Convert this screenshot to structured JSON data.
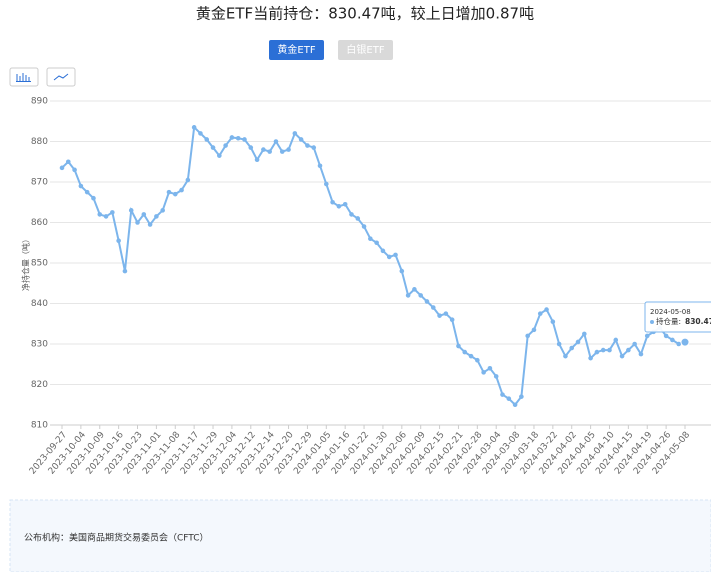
{
  "chart_data": {
    "type": "line",
    "title": "黄金ETF当前持仓：830.47吨，较上日增加0.87吨",
    "y_label": "净持仓量（吨）",
    "x": [
      "2023-09-27",
      null,
      null,
      "2023-10-04",
      null,
      null,
      "2023-10-09",
      null,
      null,
      "2023-10-16",
      null,
      null,
      "2023-10-23",
      null,
      null,
      "2023-11-01",
      null,
      null,
      "2023-11-08",
      null,
      null,
      "2023-11-17",
      null,
      null,
      "2023-11-29",
      null,
      null,
      "2023-12-04",
      null,
      null,
      "2023-12-12",
      null,
      null,
      "2023-12-14",
      null,
      null,
      "2023-12-20",
      null,
      null,
      "2023-12-29",
      null,
      null,
      "2024-01-05",
      null,
      null,
      "2024-01-16",
      null,
      null,
      "2024-01-22",
      null,
      null,
      "2024-01-30",
      null,
      null,
      "2024-02-06",
      null,
      null,
      "2024-02-09",
      null,
      null,
      "2024-02-15",
      null,
      null,
      "2024-02-21",
      null,
      null,
      "2024-02-28",
      null,
      null,
      "2024-03-04",
      null,
      null,
      "2024-03-08",
      null,
      null,
      "2024-03-18",
      null,
      null,
      "2024-03-22",
      null,
      null,
      "2024-04-02",
      null,
      null,
      "2024-04-05",
      null,
      null,
      "2024-04-10",
      null,
      null,
      "2024-04-15",
      null,
      null,
      "2024-04-19",
      null,
      null,
      "2024-04-26",
      null,
      null,
      "2024-05-08"
    ],
    "series": [
      {
        "name": "持仓量",
        "color": "#7cb5ec",
        "values": [
          873.5,
          875,
          873,
          869,
          867.5,
          866,
          862,
          861.5,
          862.5,
          855.5,
          848,
          863,
          860,
          862,
          859.5,
          861.5,
          863,
          867.5,
          867,
          868,
          870.5,
          883.5,
          882,
          880.5,
          878.5,
          876.5,
          879,
          881,
          880.8,
          880.5,
          878.5,
          875.5,
          878,
          877.5,
          880,
          877.5,
          878,
          882,
          880.5,
          879,
          878.5,
          874,
          869.5,
          865,
          864,
          864.5,
          862,
          861,
          859,
          856,
          855,
          853,
          851.5,
          852,
          848,
          842,
          843.5,
          842,
          840.5,
          839,
          837,
          837.5,
          836,
          829.5,
          828,
          827,
          826,
          823,
          824,
          822,
          817.5,
          816.5,
          815,
          817,
          832,
          833.5,
          837.5,
          838.5,
          835.5,
          830,
          827,
          829,
          830.5,
          832.5,
          826.5,
          828,
          828.5,
          828.5,
          831,
          827,
          828.5,
          830,
          827.5,
          832,
          833,
          834,
          832,
          831,
          830,
          830.47
        ]
      }
    ],
    "ylim": [
      810,
      890
    ],
    "yticks": [
      810,
      820,
      830,
      840,
      850,
      860,
      870,
      880,
      890
    ],
    "grid": true,
    "tooltip_label": "持仓量:"
  },
  "tabs": [
    "黄金ETF",
    "白银ETF"
  ],
  "source": "公布机构：美国商品期货交易委员会（CFTC）"
}
